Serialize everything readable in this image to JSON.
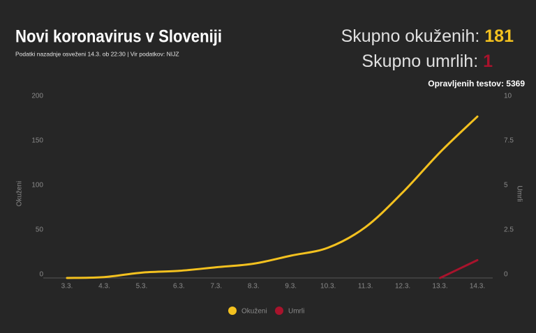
{
  "chart_data": {
    "type": "line",
    "title": "Novi koronavirus v Sloveniji",
    "subtitle": "Podatki nazadnje osveženi 14.3. ob 22:30 | Vir podatkov: NIJZ",
    "stats": {
      "infected_label": "Skupno okuženih:",
      "infected": 181,
      "deaths_label": "Skupno umrlih:",
      "deaths": 1,
      "tests_label": "Opravljenih testov:",
      "tests": 5369
    },
    "categories": [
      "3.3.",
      "4.3.",
      "5.3.",
      "6.3.",
      "7.3.",
      "8.3.",
      "9.3.",
      "10.3.",
      "11.3.",
      "12.3.",
      "13.3.",
      "14.3."
    ],
    "series": [
      {
        "name": "Okuženi",
        "color": "#f3c11f",
        "values": [
          0,
          1,
          6,
          8,
          12,
          16,
          25,
          34,
          57,
          96,
          141,
          181
        ]
      },
      {
        "name": "Umrli",
        "color": "#a8132c",
        "axis": "y2",
        "values": [
          null,
          null,
          null,
          null,
          null,
          null,
          null,
          null,
          null,
          null,
          0,
          1
        ]
      }
    ],
    "ylabel": "Okuženi",
    "y2label": "Umrli",
    "ylim": [
      0,
      200
    ],
    "yticks": [
      0,
      50,
      100,
      150,
      200
    ],
    "y2lim": [
      0,
      10
    ],
    "y2ticks": [
      0,
      2.5,
      5,
      7.5,
      10
    ],
    "grid": false,
    "legend": "bottom"
  }
}
